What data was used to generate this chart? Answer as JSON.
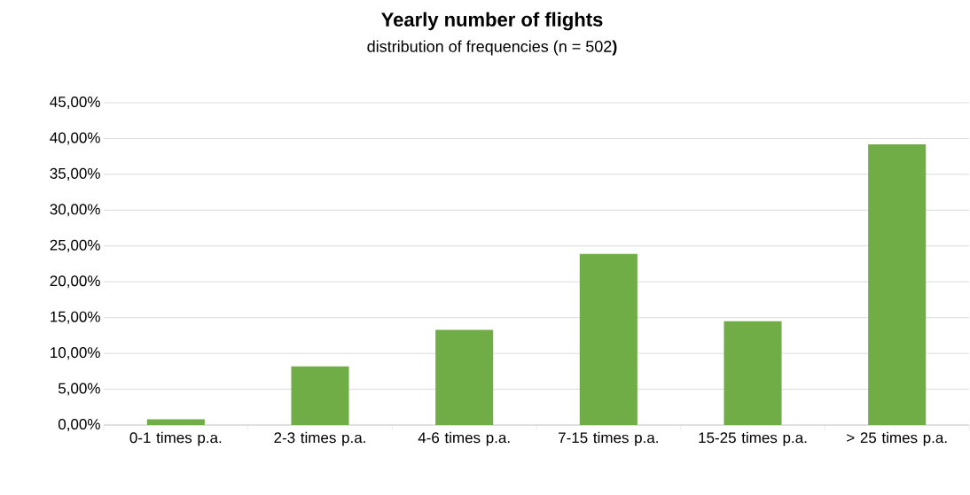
{
  "chart_data": {
    "type": "bar",
    "title": "Yearly number of flights",
    "subtitle": "distribution of frequencies (n = 502**)**",
    "categories": [
      "0-1 times p.a.",
      "2-3 times p.a.",
      "4-6 times p.a.",
      "7-15 times p.a.",
      "15-25 times p.a.",
      "> 25 times p.a."
    ],
    "values": [
      0.8,
      8.2,
      13.3,
      23.9,
      14.5,
      39.2
    ],
    "color": "#70ad47",
    "ylim": [
      0,
      45
    ],
    "yticks": [
      {
        "value": 0,
        "label": "0,00%"
      },
      {
        "value": 5,
        "label": "5,00%"
      },
      {
        "value": 10,
        "label": "10,00%"
      },
      {
        "value": 15,
        "label": "15,00%"
      },
      {
        "value": 20,
        "label": "20,00%"
      },
      {
        "value": 25,
        "label": "25,00%"
      },
      {
        "value": 30,
        "label": "30,00%"
      },
      {
        "value": 35,
        "label": "35,00%"
      },
      {
        "value": 40,
        "label": "40,00%"
      },
      {
        "value": 45,
        "label": "45,00%"
      }
    ],
    "grid": "y"
  }
}
